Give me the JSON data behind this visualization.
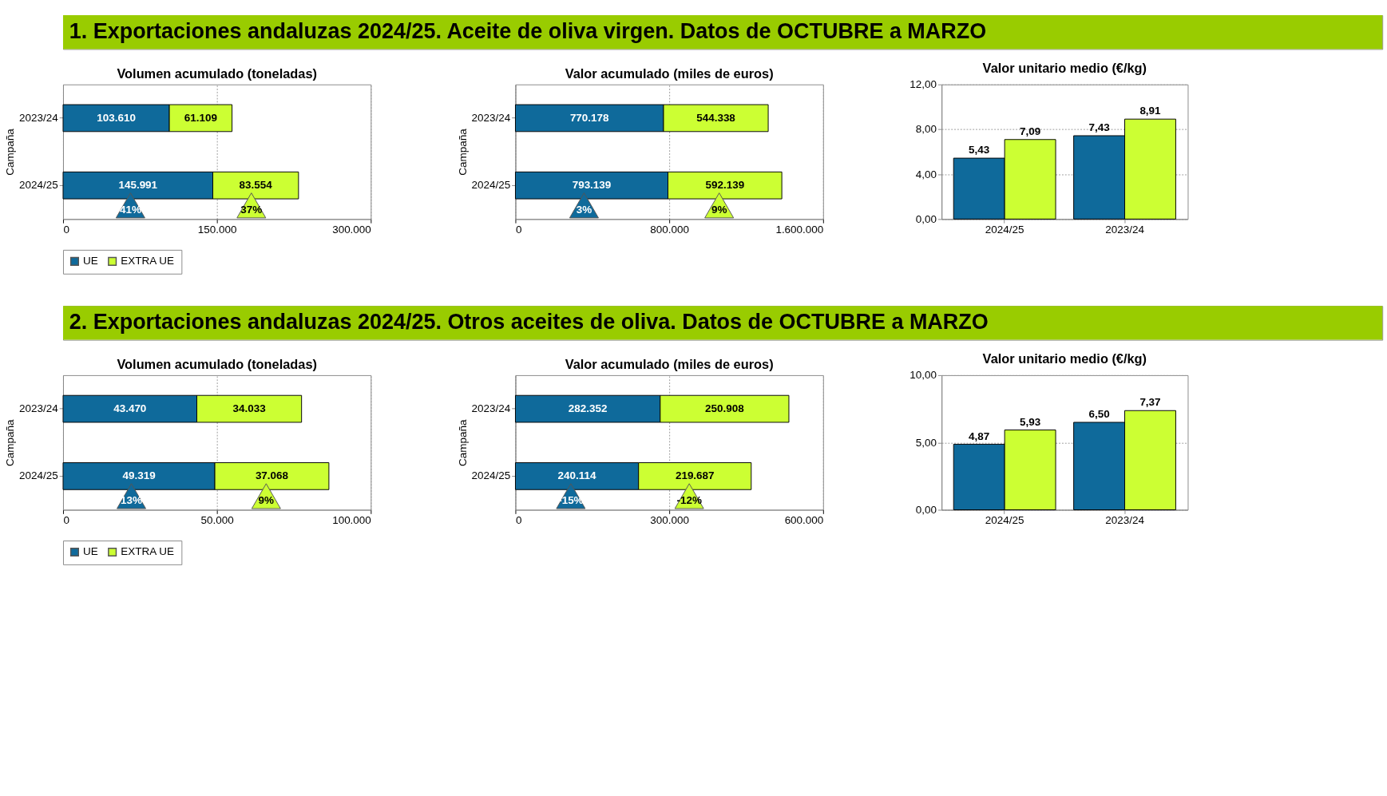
{
  "chart_data": [
    {
      "type": "bar",
      "orientation": "horizontal",
      "stacked": true,
      "title": "Volumen acumulado (toneladas)",
      "ylabel": "Campaña",
      "categories": [
        "2023/24",
        "2024/25"
      ],
      "series": [
        {
          "name": "UE",
          "color": "#0f6a9b",
          "values": [
            103610,
            145991
          ],
          "value_labels": [
            "103.610",
            "145.991"
          ]
        },
        {
          "name": "EXTRA UE",
          "color": "#ccff33",
          "values": [
            61109,
            83554
          ],
          "value_labels": [
            "61.109",
            "83.554"
          ]
        }
      ],
      "xlim": [
        0,
        300000
      ],
      "xticks": [
        0,
        {
          "value": 150000,
          "label": "150.000"
        },
        {
          "value": 300000,
          "label": "300.000"
        }
      ],
      "grid": "x",
      "legend": "bottom",
      "annotations": [
        "1. Exportaciones andaluzas 2024/25. Aceite de oliva virgen. Datos de OCTUBRE a MARZO",
        "41%",
        "37%"
      ]
    },
    {
      "type": "bar",
      "orientation": "horizontal",
      "stacked": true,
      "title": "Valor acumulado (miles de euros)",
      "ylabel": "Campaña",
      "categories": [
        "2023/24",
        "2024/25"
      ],
      "series": [
        {
          "name": "UE",
          "color": "#0f6a9b",
          "values": [
            770178,
            793139
          ],
          "value_labels": [
            "770.178",
            "793.139"
          ]
        },
        {
          "name": "EXTRA UE",
          "color": "#ccff33",
          "values": [
            544338,
            592139
          ],
          "value_labels": [
            "544.338",
            "592.139"
          ]
        }
      ],
      "xlim": [
        0,
        1600000
      ],
      "xticks": [
        0,
        {
          "value": 800000,
          "label": "800.000"
        },
        {
          "value": 1600000,
          "label": "1.600.000"
        }
      ],
      "grid": "x",
      "legend": "bottom",
      "annotations": [
        "3%",
        "9%"
      ]
    },
    {
      "type": "bar",
      "title": "Valor unitario medio (€/kg)",
      "categories": [
        "2024/25",
        "2023/24"
      ],
      "series": [
        {
          "name": "UE",
          "color": "#0f6a9b",
          "values": [
            5.43,
            7.43
          ],
          "value_labels": [
            "5,43",
            "7,43"
          ]
        },
        {
          "name": "EXTRA UE",
          "color": "#ccff33",
          "values": [
            7.09,
            8.91
          ],
          "value_labels": [
            "7,09",
            "8,91"
          ]
        }
      ],
      "ylim": [
        0,
        12
      ],
      "yticks": [
        {
          "value": 0,
          "label": "0,00"
        },
        {
          "value": 4,
          "label": "4,00"
        },
        {
          "value": 8,
          "label": "8,00"
        },
        {
          "value": 12,
          "label": "12,00"
        }
      ],
      "grid": "y",
      "legend": "bottom"
    },
    {
      "type": "bar",
      "orientation": "horizontal",
      "stacked": true,
      "title": "Volumen acumulado (toneladas)",
      "ylabel": "Campaña",
      "categories": [
        "2023/24",
        "2024/25"
      ],
      "series": [
        {
          "name": "UE",
          "color": "#0f6a9b",
          "values": [
            43470,
            49319
          ],
          "value_labels": [
            "43.470",
            "49.319"
          ]
        },
        {
          "name": "EXTRA UE",
          "color": "#ccff33",
          "values": [
            34033,
            37068
          ],
          "value_labels": [
            "34.033",
            "37.068"
          ]
        }
      ],
      "xlim": [
        0,
        100000
      ],
      "xticks": [
        0,
        {
          "value": 50000,
          "label": "50.000"
        },
        {
          "value": 100000,
          "label": "100.000"
        }
      ],
      "grid": "x",
      "legend": "bottom",
      "annotations": [
        "2. Exportaciones andaluzas 2024/25. Otros aceites de oliva. Datos de OCTUBRE a MARZO",
        "13%",
        "9%"
      ]
    },
    {
      "type": "bar",
      "orientation": "horizontal",
      "stacked": true,
      "title": "Valor acumulado (miles de euros)",
      "ylabel": "Campaña",
      "categories": [
        "2023/24",
        "2024/25"
      ],
      "series": [
        {
          "name": "UE",
          "color": "#0f6a9b",
          "values": [
            282352,
            240114
          ],
          "value_labels": [
            "282.352",
            "240.114"
          ]
        },
        {
          "name": "EXTRA UE",
          "color": "#ccff33",
          "values": [
            250908,
            219687
          ],
          "value_labels": [
            "250.908",
            "219.687"
          ]
        }
      ],
      "xlim": [
        0,
        600000
      ],
      "xticks": [
        0,
        {
          "value": 300000,
          "label": "300.000"
        },
        {
          "value": 600000,
          "label": "600.000"
        }
      ],
      "grid": "x",
      "legend": "bottom",
      "annotations": [
        "-15%",
        "-12%"
      ]
    },
    {
      "type": "bar",
      "title": "Valor unitario medio (€/kg)",
      "categories": [
        "2024/25",
        "2023/24"
      ],
      "series": [
        {
          "name": "UE",
          "color": "#0f6a9b",
          "values": [
            4.87,
            6.5
          ],
          "value_labels": [
            "4,87",
            "6,50"
          ]
        },
        {
          "name": "EXTRA UE",
          "color": "#ccff33",
          "values": [
            5.93,
            7.37
          ],
          "value_labels": [
            "5,93",
            "7,37"
          ]
        }
      ],
      "ylim": [
        0,
        10
      ],
      "yticks": [
        {
          "value": 0,
          "label": "0,00"
        },
        {
          "value": 5,
          "label": "5,00"
        },
        {
          "value": 10,
          "label": "10,00"
        }
      ],
      "grid": "y",
      "legend": "bottom"
    }
  ]
}
